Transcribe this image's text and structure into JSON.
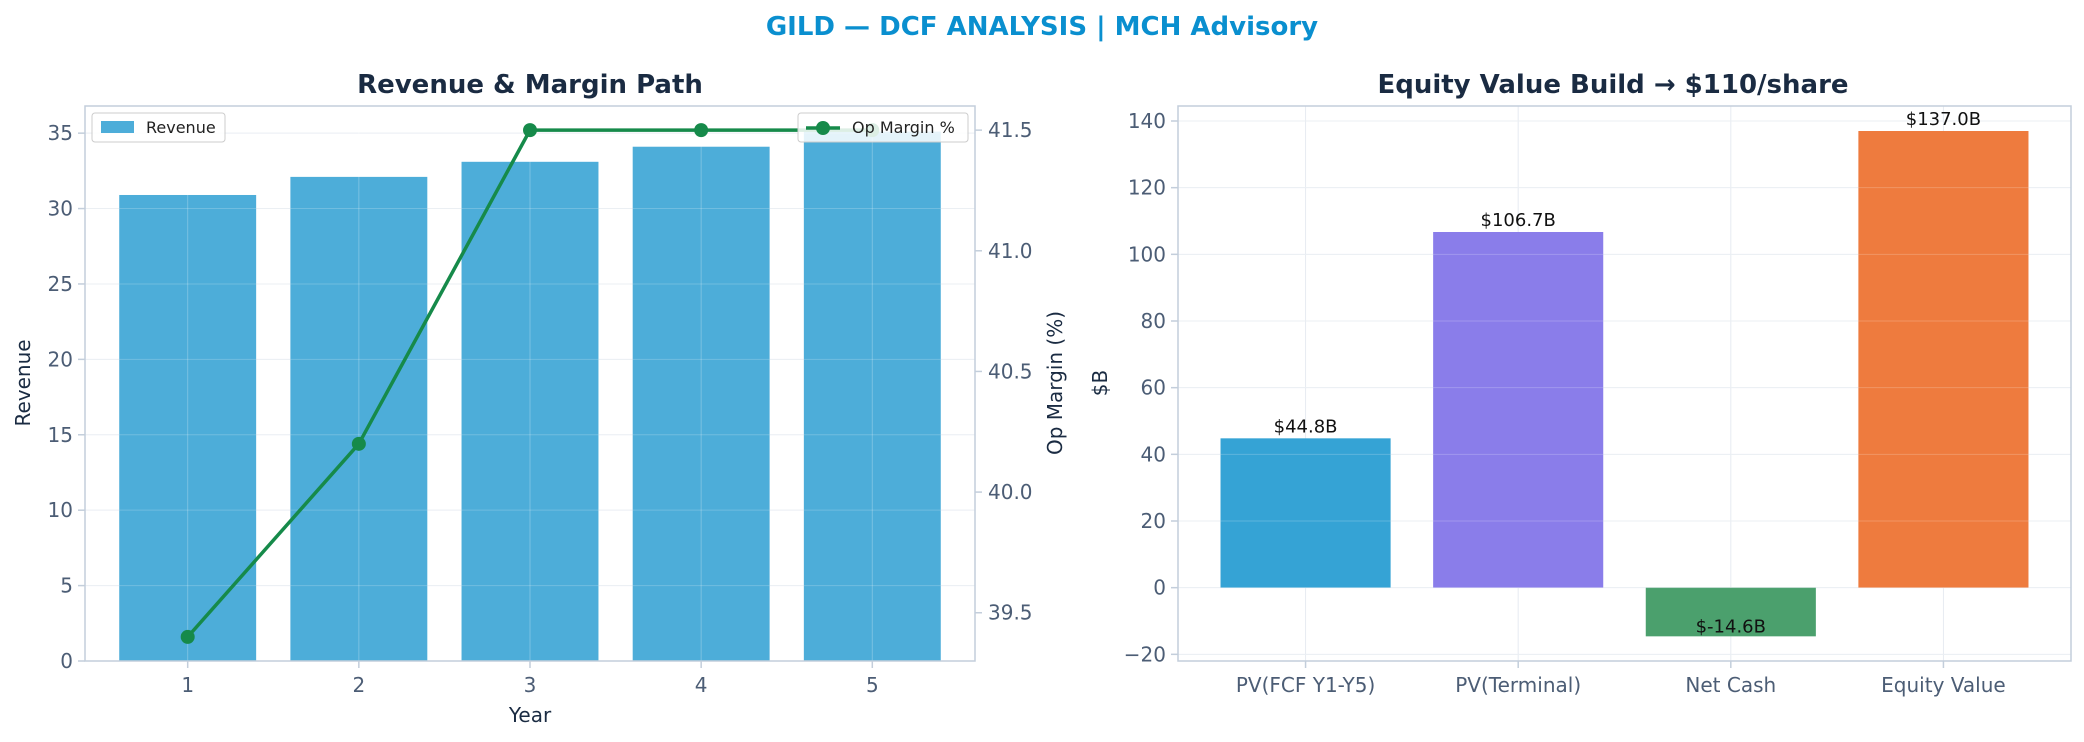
{
  "suptitle": "GILD — DCF ANALYSIS | MCH Advisory",
  "colors": {
    "revenue_bar": "#4dadd9",
    "op_margin_line": "#168a4a",
    "grid": "#e6ebf1",
    "spine": "#c3cedb",
    "bridge": [
      "#35a3d5",
      "#8a7dea",
      "#4ba06d",
      "#ee7b3e"
    ]
  },
  "chart_data": [
    {
      "type": "bar",
      "title": "Revenue & Margin Path",
      "xlabel": "Year",
      "ylabel": "Revenue",
      "y2label": "Op Margin (%)",
      "categories": [
        "1",
        "2",
        "3",
        "4",
        "5"
      ],
      "series": [
        {
          "name": "Revenue",
          "type": "bar",
          "axis": "left",
          "values": [
            30.9,
            32.1,
            33.1,
            34.1,
            35.1
          ]
        },
        {
          "name": "Op Margin %",
          "type": "line",
          "axis": "right",
          "values": [
            39.4,
            40.2,
            41.5,
            41.5,
            41.5
          ]
        }
      ],
      "ylim": [
        0,
        36.8
      ],
      "yticks": [
        "0",
        "5",
        "10",
        "15",
        "20",
        "25",
        "30",
        "35"
      ],
      "y2lim": [
        39.3,
        41.6
      ],
      "y2ticks": [
        "39.5",
        "40.0",
        "40.5",
        "41.0",
        "41.5"
      ],
      "grid": true,
      "legend": [
        "upper-left: Revenue",
        "upper-right: Op Margin %"
      ]
    },
    {
      "type": "bar",
      "title": "Equity Value Build → $110/share",
      "xlabel": "",
      "ylabel": "$B",
      "categories": [
        "PV(FCF Y1-Y5)",
        "PV(Terminal)",
        "Net Cash",
        "Equity Value"
      ],
      "values": [
        44.8,
        106.7,
        -14.6,
        137.0
      ],
      "data_labels": [
        "$44.8B",
        "$106.7B",
        "$-14.6B",
        "$137.0B"
      ],
      "ylim": [
        -22,
        144.5
      ],
      "yticks": [
        "−20",
        "0",
        "20",
        "40",
        "60",
        "80",
        "100",
        "120",
        "140"
      ],
      "grid": true
    }
  ]
}
